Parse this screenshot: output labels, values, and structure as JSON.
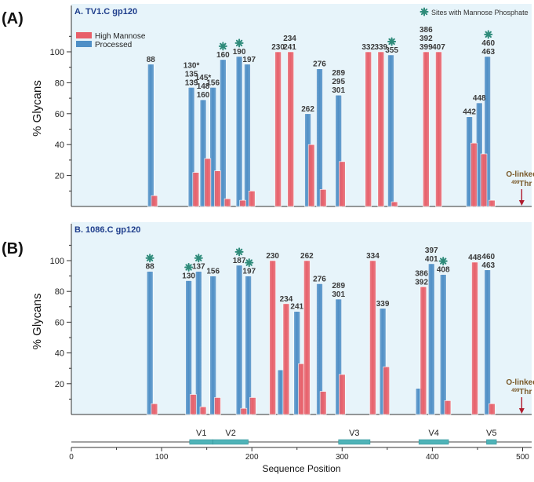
{
  "figure": {
    "xlabel": "Sequence Position",
    "xticks": [
      0,
      100,
      200,
      300,
      400,
      500
    ],
    "xlim": [
      0,
      510
    ],
    "regions": [
      {
        "label": "V1",
        "start": 131,
        "end": 157
      },
      {
        "label": "V2",
        "start": 157,
        "end": 196
      },
      {
        "label": "V3",
        "start": 296,
        "end": 331
      },
      {
        "label": "V4",
        "start": 385,
        "end": 418
      },
      {
        "label": "V5",
        "start": 460,
        "end": 471
      }
    ]
  },
  "colors": {
    "high_mannose": "#e8606a",
    "processed": "#4f8fc6",
    "panel_bg": "#e7f4fa",
    "title": "#1f3e8c",
    "marker": "#2e8b7a",
    "olinked": "#7a5a2a",
    "arrow": "#b01c2e",
    "region": "#4fb3b8"
  },
  "chart_data": [
    {
      "type": "bar",
      "panel_label": "(A)",
      "title": "A.  TV1.C gp120",
      "ylabel": "% Glycans",
      "yticks": [
        20,
        40,
        60,
        80,
        100
      ],
      "ylim": [
        0,
        120
      ],
      "legend": {
        "high_mannose": "High Mannose",
        "processed": "Processed",
        "marker": "Sites with Mannose Phosphate"
      },
      "annotation": {
        "line1": "O-linked",
        "sup": "499",
        "line2": "Thr",
        "position": 499
      },
      "series": [
        {
          "name": "Processed",
          "x": [
            88,
            133,
            146,
            157,
            168,
            186,
            195,
            262,
            275,
            296,
            354,
            441,
            452,
            461
          ],
          "values": [
            92,
            77,
            69,
            77,
            95,
            97,
            92,
            60,
            89,
            72,
            98,
            58,
            67,
            97
          ]
        },
        {
          "name": "High Mannose",
          "x": [
            92,
            138,
            151,
            162,
            173,
            190,
            200,
            229,
            243,
            266,
            279,
            300,
            329,
            343,
            358,
            393,
            407,
            446,
            457,
            466
          ],
          "values": [
            7,
            22,
            31,
            23,
            5,
            4,
            10,
            100,
            100,
            40,
            11,
            29,
            100,
            100,
            3,
            100,
            100,
            41,
            34,
            4
          ]
        }
      ],
      "labels": [
        {
          "x": 88,
          "y": 92,
          "lines": [
            "88"
          ],
          "marker": false
        },
        {
          "x": 133,
          "y": 77,
          "lines": [
            "130*",
            "135",
            "139"
          ],
          "marker": false
        },
        {
          "x": 146,
          "y": 69,
          "lines": [
            "145*",
            "148",
            "160"
          ],
          "marker": false
        },
        {
          "x": 157,
          "y": 77,
          "lines": [
            "156"
          ],
          "marker": false
        },
        {
          "x": 168,
          "y": 95,
          "lines": [
            "160"
          ],
          "marker": true
        },
        {
          "x": 186,
          "y": 97,
          "lines": [
            "190"
          ],
          "marker": true
        },
        {
          "x": 197,
          "y": 92,
          "lines": [
            "197"
          ],
          "marker": false
        },
        {
          "x": 229,
          "y": 100,
          "lines": [
            "230"
          ],
          "marker": false
        },
        {
          "x": 242,
          "y": 100,
          "lines": [
            "234",
            "241"
          ],
          "marker": false
        },
        {
          "x": 262,
          "y": 60,
          "lines": [
            "262"
          ],
          "marker": false
        },
        {
          "x": 275,
          "y": 89,
          "lines": [
            "276"
          ],
          "marker": false
        },
        {
          "x": 296,
          "y": 72,
          "lines": [
            "289",
            "295",
            "301"
          ],
          "marker": false
        },
        {
          "x": 329,
          "y": 100,
          "lines": [
            "332"
          ],
          "marker": false
        },
        {
          "x": 343,
          "y": 100,
          "lines": [
            "339"
          ],
          "marker": false
        },
        {
          "x": 355,
          "y": 98,
          "lines": [
            "355"
          ],
          "marker": true
        },
        {
          "x": 393,
          "y": 100,
          "lines": [
            "386",
            "392",
            "399"
          ],
          "marker": false
        },
        {
          "x": 407,
          "y": 100,
          "lines": [
            "407"
          ],
          "marker": false
        },
        {
          "x": 441,
          "y": 58,
          "lines": [
            "442"
          ],
          "marker": false
        },
        {
          "x": 452,
          "y": 67,
          "lines": [
            "448"
          ],
          "marker": false
        },
        {
          "x": 462,
          "y": 97,
          "lines": [
            "460",
            "463"
          ],
          "marker": true
        }
      ]
    },
    {
      "type": "bar",
      "panel_label": "(B)",
      "title": "B.  1086.C gp120",
      "ylabel": "% Glycans",
      "yticks": [
        20,
        40,
        60,
        80,
        100
      ],
      "ylim": [
        0,
        120
      ],
      "annotation": {
        "line1": "O-linked",
        "sup": "499",
        "line2": "Thr",
        "position": 499
      },
      "series": [
        {
          "name": "Processed",
          "x": [
            87,
            130,
            141,
            157,
            186,
            196,
            232,
            250,
            275,
            296,
            345,
            385,
            399,
            412,
            461
          ],
          "values": [
            93,
            87,
            93,
            90,
            97,
            90,
            29,
            67,
            85,
            75,
            69,
            17,
            98,
            91,
            94
          ]
        },
        {
          "name": "High Mannose",
          "x": [
            92,
            135,
            146,
            162,
            191,
            201,
            223,
            238,
            255,
            261,
            279,
            300,
            334,
            349,
            390,
            417,
            447,
            466
          ],
          "values": [
            7,
            13,
            5,
            11,
            4,
            11,
            100,
            72,
            33,
            100,
            15,
            26,
            100,
            31,
            83,
            9,
            99,
            7
          ]
        }
      ],
      "labels": [
        {
          "x": 87,
          "y": 93,
          "lines": [
            "88"
          ],
          "marker": true
        },
        {
          "x": 130,
          "y": 87,
          "lines": [
            "130"
          ],
          "marker": true
        },
        {
          "x": 141,
          "y": 93,
          "lines": [
            "137"
          ],
          "marker": true
        },
        {
          "x": 157,
          "y": 90,
          "lines": [
            "156"
          ],
          "marker": false
        },
        {
          "x": 186,
          "y": 97,
          "lines": [
            "187"
          ],
          "marker": true
        },
        {
          "x": 197,
          "y": 90,
          "lines": [
            "197"
          ],
          "marker": true
        },
        {
          "x": 223,
          "y": 100,
          "lines": [
            "230"
          ],
          "marker": false
        },
        {
          "x": 238,
          "y": 72,
          "lines": [
            "234"
          ],
          "marker": false
        },
        {
          "x": 250,
          "y": 67,
          "lines": [
            "241"
          ],
          "marker": false
        },
        {
          "x": 261,
          "y": 100,
          "lines": [
            "262"
          ],
          "marker": false
        },
        {
          "x": 275,
          "y": 85,
          "lines": [
            "276"
          ],
          "marker": false
        },
        {
          "x": 296,
          "y": 75,
          "lines": [
            "289",
            "301"
          ],
          "marker": false
        },
        {
          "x": 334,
          "y": 100,
          "lines": [
            "334"
          ],
          "marker": false
        },
        {
          "x": 345,
          "y": 69,
          "lines": [
            "339"
          ],
          "marker": false
        },
        {
          "x": 388,
          "y": 83,
          "lines": [
            "386",
            "392"
          ],
          "marker": false
        },
        {
          "x": 399,
          "y": 98,
          "lines": [
            "397",
            "401"
          ],
          "marker": false
        },
        {
          "x": 412,
          "y": 91,
          "lines": [
            "408"
          ],
          "marker": true
        },
        {
          "x": 447,
          "y": 99,
          "lines": [
            "448"
          ],
          "marker": false
        },
        {
          "x": 462,
          "y": 94,
          "lines": [
            "460",
            "463"
          ],
          "marker": false
        }
      ]
    }
  ]
}
